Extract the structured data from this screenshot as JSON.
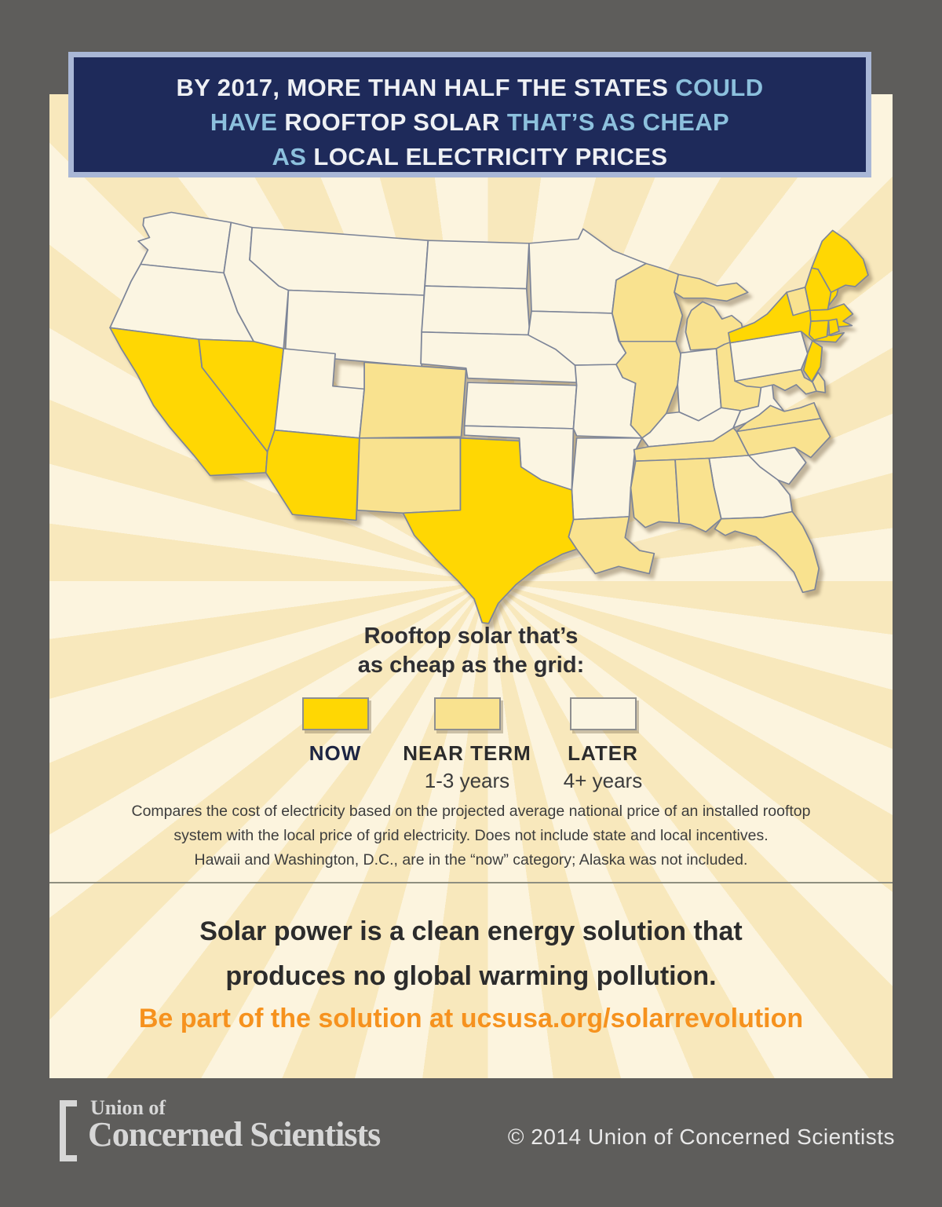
{
  "colors": {
    "now": "#ffd703",
    "near": "#f9e28f",
    "later": "#fbf5e2",
    "frame": "#5e5d5b",
    "navy": "#1e2a5a",
    "header_border": "#a9b7d6",
    "header_white": "#eef0f4",
    "header_blue": "#8cc0dd",
    "orange": "#f6921e",
    "map_border": "#7d8598"
  },
  "header": {
    "lines": [
      {
        "segments": [
          {
            "text": "BY 2017, MORE THAN HALF THE STATES ",
            "color": "white"
          },
          {
            "text": "COULD",
            "color": "blue"
          }
        ]
      },
      {
        "segments": [
          {
            "text": "HAVE ",
            "color": "blue"
          },
          {
            "text": "ROOFTOP SOLAR ",
            "color": "white"
          },
          {
            "text": "THAT’S AS CHEAP",
            "color": "blue"
          }
        ]
      },
      {
        "segments": [
          {
            "text": "AS ",
            "color": "blue"
          },
          {
            "text": "LOCAL ELECTRICITY PRICES",
            "color": "white"
          }
        ]
      }
    ]
  },
  "legend": {
    "title_line1": "Rooftop solar that’s",
    "title_line2": "as cheap as the grid:",
    "items": [
      {
        "label": "NOW",
        "sublabel": "",
        "category": "now",
        "label_color": "#1d2543"
      },
      {
        "label": "NEAR TERM",
        "sublabel": "1-3 years",
        "category": "near",
        "label_color": "#2b2b2b"
      },
      {
        "label": "LATER",
        "sublabel": "4+ years",
        "category": "later",
        "label_color": "#2b2b2b"
      }
    ]
  },
  "map": {
    "states": {
      "WA": "later",
      "OR": "later",
      "CA": "now",
      "NV": "now",
      "ID": "later",
      "MT": "later",
      "WY": "later",
      "UT": "later",
      "CO": "near",
      "AZ": "now",
      "NM": "near",
      "ND": "later",
      "SD": "later",
      "NE": "later",
      "KS": "later",
      "OK": "later",
      "TX": "now",
      "MN": "later",
      "IA": "later",
      "MO": "later",
      "AR": "later",
      "LA": "near",
      "WI": "near",
      "IL": "near",
      "MI": "near",
      "IN": "later",
      "OH": "near",
      "KY": "later",
      "TN": "near",
      "MS": "near",
      "AL": "near",
      "GA": "later",
      "FL": "near",
      "SC": "later",
      "NC": "near",
      "VA": "near",
      "WV": "later",
      "PA": "later",
      "NY": "now",
      "NJ": "now",
      "DE": "near",
      "MD": "near",
      "VT": "near",
      "NH": "now",
      "ME": "now",
      "MA": "now",
      "CT": "now",
      "RI": "now"
    }
  },
  "chart_data": {
    "type": "heatmap",
    "title": "By 2017, more than half the states could have rooftop solar that's as cheap as local electricity prices",
    "subtitle": "Rooftop solar that's as cheap as the grid",
    "categories": [
      "NOW",
      "NEAR TERM (1-3 years)",
      "LATER (4+ years)"
    ],
    "series": [
      {
        "name": "NOW",
        "values": [
          "CA",
          "NV",
          "AZ",
          "TX",
          "NY",
          "NJ",
          "CT",
          "RI",
          "MA",
          "NH",
          "ME",
          "HI",
          "DC"
        ]
      },
      {
        "name": "NEAR TERM (1-3 years)",
        "values": [
          "CO",
          "NM",
          "WI",
          "MI",
          "IL",
          "OH",
          "VT",
          "DE",
          "MD",
          "VA",
          "NC",
          "TN",
          "MS",
          "AL",
          "LA",
          "FL"
        ]
      },
      {
        "name": "LATER (4+ years)",
        "values": [
          "WA",
          "OR",
          "ID",
          "MT",
          "WY",
          "UT",
          "ND",
          "SD",
          "NE",
          "KS",
          "OK",
          "MN",
          "IA",
          "MO",
          "AR",
          "IN",
          "KY",
          "WV",
          "PA",
          "SC",
          "GA"
        ]
      }
    ],
    "notes": "Alaska was not included",
    "legend_position": "below-map"
  },
  "footnote": {
    "lines": [
      "Compares the cost of electricity based on the projected average national price of an installed rooftop",
      "system with the local price of grid electricity. Does not include state and local incentives.",
      "Hawaii and Washington, D.C., are in the “now” category; Alaska was not included."
    ]
  },
  "message": {
    "line1": "Solar power is a clean energy solution that",
    "line2": "produces no global warming pollution."
  },
  "cta": {
    "prefix": "Be part of the solution at ",
    "link": "ucsusa.org/solarrevolution"
  },
  "footer": {
    "logo_top": "Union of",
    "logo_bottom": "Concerned Scientists",
    "copyright": "© 2014 Union of Concerned Scientists"
  }
}
